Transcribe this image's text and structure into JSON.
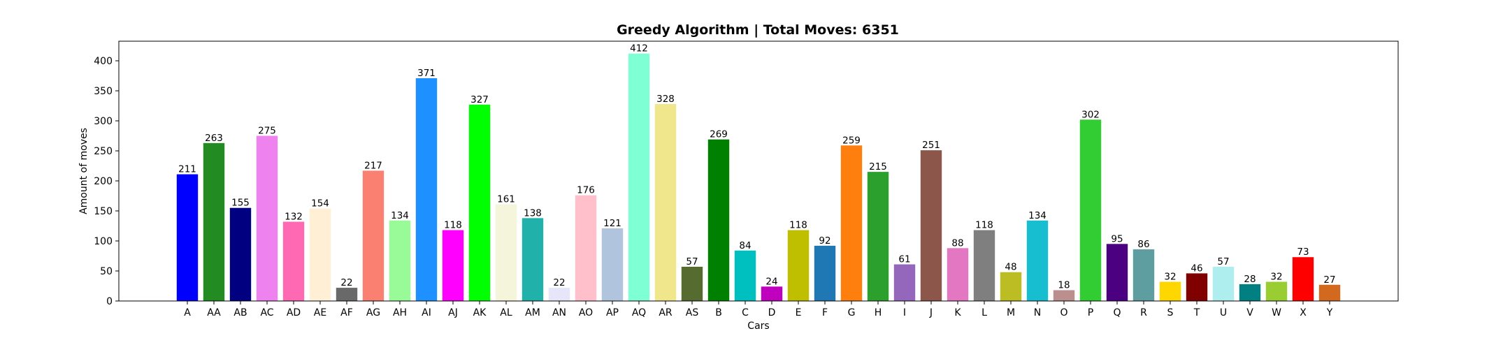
{
  "chart_data": {
    "type": "bar",
    "title": "Greedy Algorithm | Total Moves: 6351",
    "xlabel": "Cars",
    "ylabel": "Amount of moves",
    "ylim": [
      0,
      432.6
    ],
    "yticks": [
      0,
      50,
      100,
      150,
      200,
      250,
      300,
      350,
      400
    ],
    "grid": false,
    "categories": [
      "A",
      "AA",
      "AB",
      "AC",
      "AD",
      "AE",
      "AF",
      "AG",
      "AH",
      "AI",
      "AJ",
      "AK",
      "AL",
      "AM",
      "AN",
      "AO",
      "AP",
      "AQ",
      "AR",
      "AS",
      "B",
      "C",
      "D",
      "E",
      "F",
      "G",
      "H",
      "I",
      "J",
      "K",
      "L",
      "M",
      "N",
      "O",
      "P",
      "Q",
      "R",
      "S",
      "T",
      "U",
      "V",
      "W",
      "X",
      "Y"
    ],
    "values": [
      211,
      263,
      155,
      275,
      132,
      154,
      22,
      217,
      134,
      371,
      118,
      327,
      161,
      138,
      22,
      176,
      121,
      412,
      328,
      57,
      269,
      84,
      24,
      118,
      92,
      259,
      215,
      61,
      251,
      88,
      118,
      48,
      134,
      18,
      302,
      95,
      86,
      32,
      46,
      57,
      28,
      32,
      73,
      27
    ],
    "colors": [
      "#0000ff",
      "#228b22",
      "#000080",
      "#ee82ee",
      "#ff69b4",
      "#ffefd5",
      "#696969",
      "#fa8072",
      "#98fb98",
      "#1e90ff",
      "#ff00ff",
      "#00ff00",
      "#f5f5dc",
      "#20b2aa",
      "#e6e6fa",
      "#ffc0cb",
      "#b0c4de",
      "#7fffd4",
      "#f0e68c",
      "#556b2f",
      "#008000",
      "#00bfbf",
      "#bf00bf",
      "#bfbf00",
      "#1f77b4",
      "#ff7f0e",
      "#2ca02c",
      "#9467bd",
      "#8c564b",
      "#e377c2",
      "#7f7f7f",
      "#bcbd22",
      "#17becf",
      "#bc8f8f",
      "#32cd32",
      "#4b0082",
      "#5f9ea0",
      "#ffd700",
      "#800000",
      "#afeeee",
      "#008080",
      "#9acd32",
      "#ff0000",
      "#d2691e"
    ]
  }
}
